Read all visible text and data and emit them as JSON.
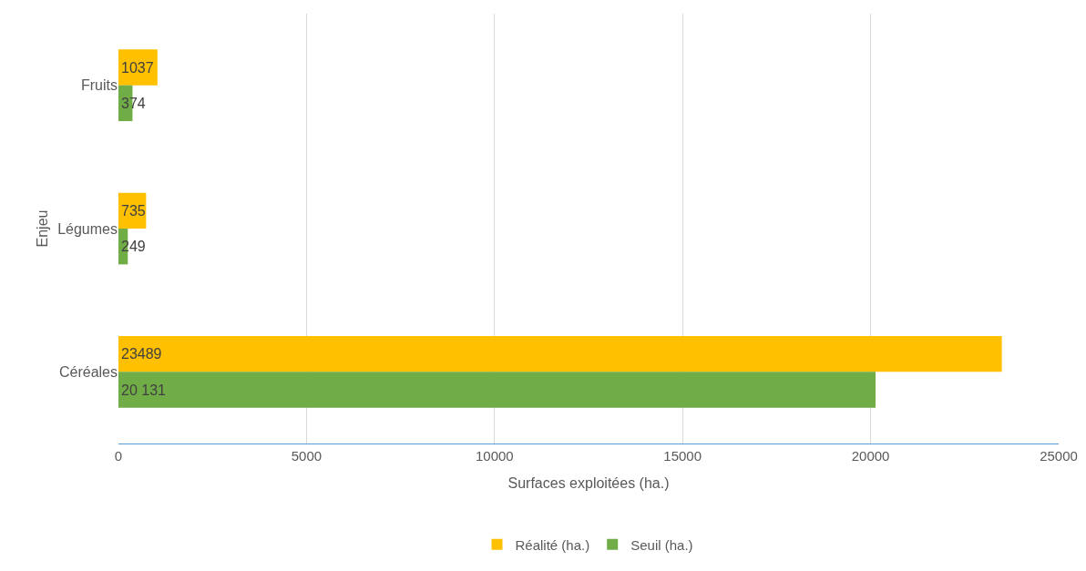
{
  "chart_data": {
    "type": "bar",
    "orientation": "horizontal",
    "xlabel": "Surfaces exploitées (ha.)",
    "ylabel": "Enjeu",
    "categories": [
      "Fruits",
      "Légumes",
      "Céréales"
    ],
    "series": [
      {
        "name": "Réalité (ha.)",
        "color": "#ffc000",
        "values": [
          1037,
          735,
          23489
        ],
        "value_labels": [
          "1037",
          "735",
          "23489"
        ]
      },
      {
        "name": "Seuil (ha.)",
        "color": "#70ad47",
        "values": [
          374,
          249,
          20131
        ],
        "value_labels": [
          "374",
          "249",
          "20 131"
        ]
      }
    ],
    "xlim": [
      0,
      25000
    ],
    "xticks": [
      0,
      5000,
      10000,
      15000,
      20000,
      25000
    ],
    "grid": "x",
    "legend": "bottom"
  }
}
